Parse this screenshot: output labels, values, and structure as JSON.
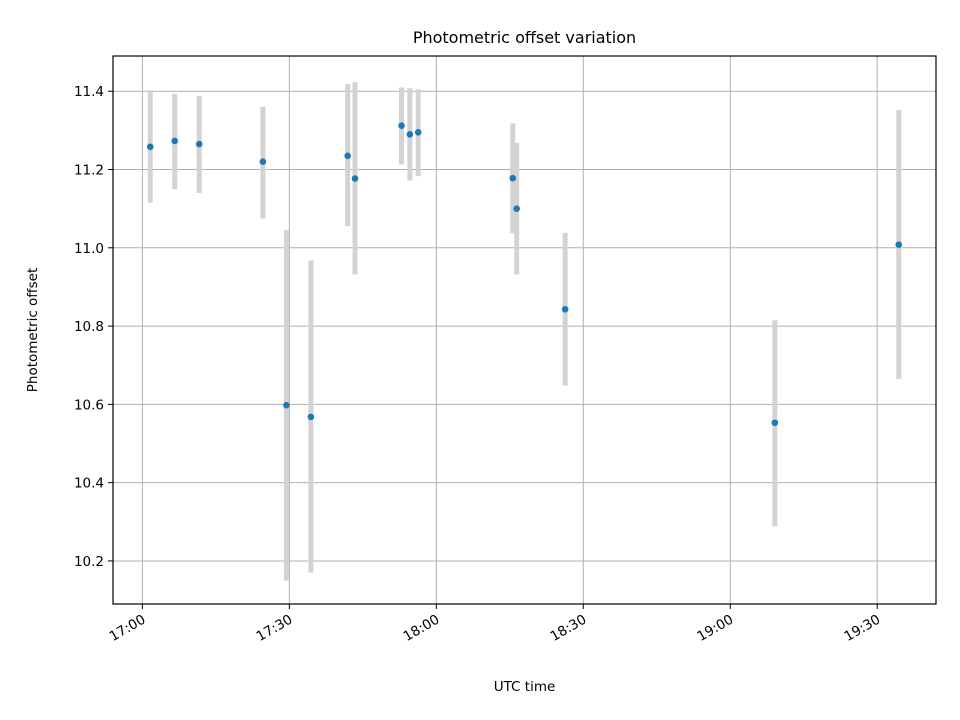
{
  "chart_data": {
    "type": "scatter",
    "title": "Photometric offset variation",
    "xlabel": "UTC time",
    "ylabel": "Photometric offset",
    "x_axis": {
      "min": "16:54",
      "max": "19:42",
      "ticks": [
        "17:00",
        "17:30",
        "18:00",
        "18:30",
        "19:00",
        "19:30"
      ]
    },
    "y_axis": {
      "min": 10.09,
      "max": 11.49,
      "ticks": [
        "10.2",
        "10.4",
        "10.6",
        "10.8",
        "11.0",
        "11.2",
        "11.4"
      ]
    },
    "grid": true,
    "colors": {
      "point": "#1f77b4",
      "errorbar": "#d3d3d3",
      "grid": "#b0b0b0"
    },
    "points": [
      {
        "x": "17:01.6",
        "y": 11.258,
        "low": 11.115,
        "high": 11.4
      },
      {
        "x": "17:06.6",
        "y": 11.273,
        "low": 11.15,
        "high": 11.393
      },
      {
        "x": "17:11.6",
        "y": 11.265,
        "low": 11.14,
        "high": 11.388
      },
      {
        "x": "17:24.6",
        "y": 11.22,
        "low": 11.075,
        "high": 11.36
      },
      {
        "x": "17:29.4",
        "y": 10.598,
        "low": 10.15,
        "high": 11.045
      },
      {
        "x": "17:34.4",
        "y": 10.568,
        "low": 10.17,
        "high": 10.968
      },
      {
        "x": "17:41.9",
        "y": 11.235,
        "low": 11.055,
        "high": 11.418
      },
      {
        "x": "17:43.4",
        "y": 11.177,
        "low": 10.932,
        "high": 11.423
      },
      {
        "x": "17:52.9",
        "y": 11.312,
        "low": 11.213,
        "high": 11.41
      },
      {
        "x": "17:54.6",
        "y": 11.29,
        "low": 11.172,
        "high": 11.408
      },
      {
        "x": "17:56.3",
        "y": 11.295,
        "low": 11.183,
        "high": 11.405
      },
      {
        "x": "18:15.6",
        "y": 11.178,
        "low": 11.037,
        "high": 11.318
      },
      {
        "x": "18:16.4",
        "y": 11.1,
        "low": 10.932,
        "high": 11.268
      },
      {
        "x": "18:26.3",
        "y": 10.843,
        "low": 10.648,
        "high": 11.038
      },
      {
        "x": "19:09.1",
        "y": 10.553,
        "low": 10.288,
        "high": 10.815
      },
      {
        "x": "19:34.4",
        "y": 11.008,
        "low": 10.665,
        "high": 11.352
      }
    ]
  }
}
